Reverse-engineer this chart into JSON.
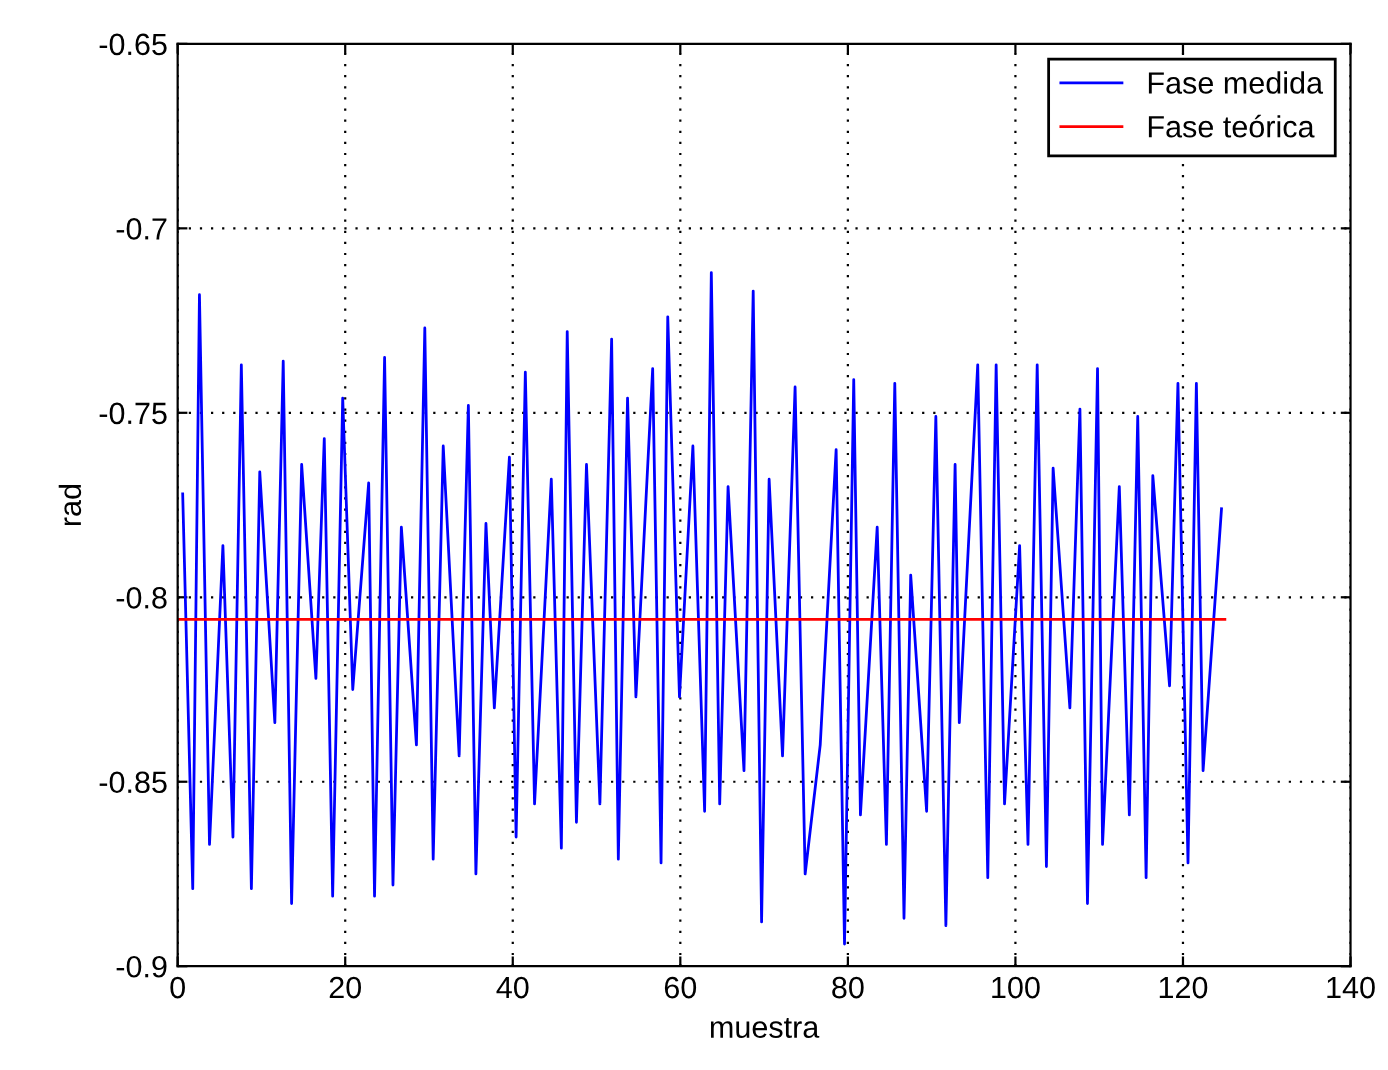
{
  "chart_data": {
    "type": "line",
    "xlabel": "muestra",
    "ylabel": "rad",
    "xlim": [
      0,
      140
    ],
    "xticks": [
      0,
      20,
      40,
      60,
      80,
      100,
      120,
      140
    ],
    "ylim": [
      -0.9,
      -0.65
    ],
    "yticks": [
      -0.9,
      -0.85,
      -0.8,
      -0.75,
      -0.7,
      -0.65
    ],
    "grid": true,
    "legend": "top right",
    "line_style": "solid",
    "marker": "none",
    "series": [
      {
        "name": "Fase medida",
        "color": "#0000ff",
        "x": [
          0.6,
          1.8,
          2.6,
          3.8,
          5.4,
          6.6,
          7.6,
          8.8,
          9.8,
          11.6,
          12.6,
          13.6,
          14.8,
          16.5,
          17.5,
          18.5,
          19.7,
          20.9,
          22.8,
          23.5,
          24.7,
          25.7,
          26.7,
          28.5,
          29.5,
          30.5,
          31.7,
          33.6,
          34.7,
          35.6,
          36.8,
          37.8,
          39.6,
          40.4,
          41.5,
          42.6,
          44.6,
          45.8,
          46.5,
          47.6,
          48.8,
          50.4,
          51.8,
          52.6,
          53.7,
          54.7,
          56.7,
          57.7,
          58.5,
          59.9,
          61.5,
          62.9,
          63.7,
          64.7,
          65.7,
          67.6,
          68.7,
          69.7,
          70.6,
          72.2,
          73.7,
          74.9,
          76.7,
          78.6,
          79.6,
          80.7,
          81.5,
          83.5,
          84.6,
          85.6,
          86.7,
          87.5,
          89.4,
          90.5,
          91.7,
          92.8,
          93.3,
          95.5,
          96.7,
          97.7,
          98.7,
          100.5,
          101.5,
          102.6,
          103.7,
          104.5,
          106.5,
          107.7,
          108.6,
          109.8,
          110.4,
          112.4,
          113.6,
          114.6,
          115.6,
          116.4,
          118.4,
          119.4,
          120.6,
          121.6,
          122.4,
          124.6
        ],
        "values": [
          -0.772,
          -0.879,
          -0.718,
          -0.867,
          -0.786,
          -0.865,
          -0.737,
          -0.879,
          -0.766,
          -0.834,
          -0.736,
          -0.883,
          -0.764,
          -0.822,
          -0.757,
          -0.881,
          -0.746,
          -0.825,
          -0.769,
          -0.881,
          -0.735,
          -0.878,
          -0.781,
          -0.84,
          -0.727,
          -0.871,
          -0.759,
          -0.843,
          -0.748,
          -0.875,
          -0.78,
          -0.83,
          -0.762,
          -0.865,
          -0.739,
          -0.856,
          -0.768,
          -0.868,
          -0.728,
          -0.861,
          -0.764,
          -0.856,
          -0.73,
          -0.871,
          -0.746,
          -0.827,
          -0.738,
          -0.872,
          -0.724,
          -0.827,
          -0.759,
          -0.858,
          -0.712,
          -0.856,
          -0.77,
          -0.847,
          -0.717,
          -0.888,
          -0.768,
          -0.843,
          -0.743,
          -0.875,
          -0.84,
          -0.76,
          -0.894,
          -0.741,
          -0.859,
          -0.781,
          -0.867,
          -0.742,
          -0.887,
          -0.794,
          -0.858,
          -0.751,
          -0.889,
          -0.764,
          -0.834,
          -0.737,
          -0.876,
          -0.737,
          -0.856,
          -0.786,
          -0.867,
          -0.737,
          -0.873,
          -0.765,
          -0.83,
          -0.749,
          -0.883,
          -0.738,
          -0.867,
          -0.77,
          -0.859,
          -0.751,
          -0.876,
          -0.767,
          -0.824,
          -0.742,
          -0.872,
          -0.742,
          -0.847,
          -0.776
        ]
      },
      {
        "name": "Fase teórica",
        "color": "#ff0000",
        "x": [
          0,
          125
        ],
        "values": [
          -0.806,
          -0.806
        ]
      }
    ]
  }
}
